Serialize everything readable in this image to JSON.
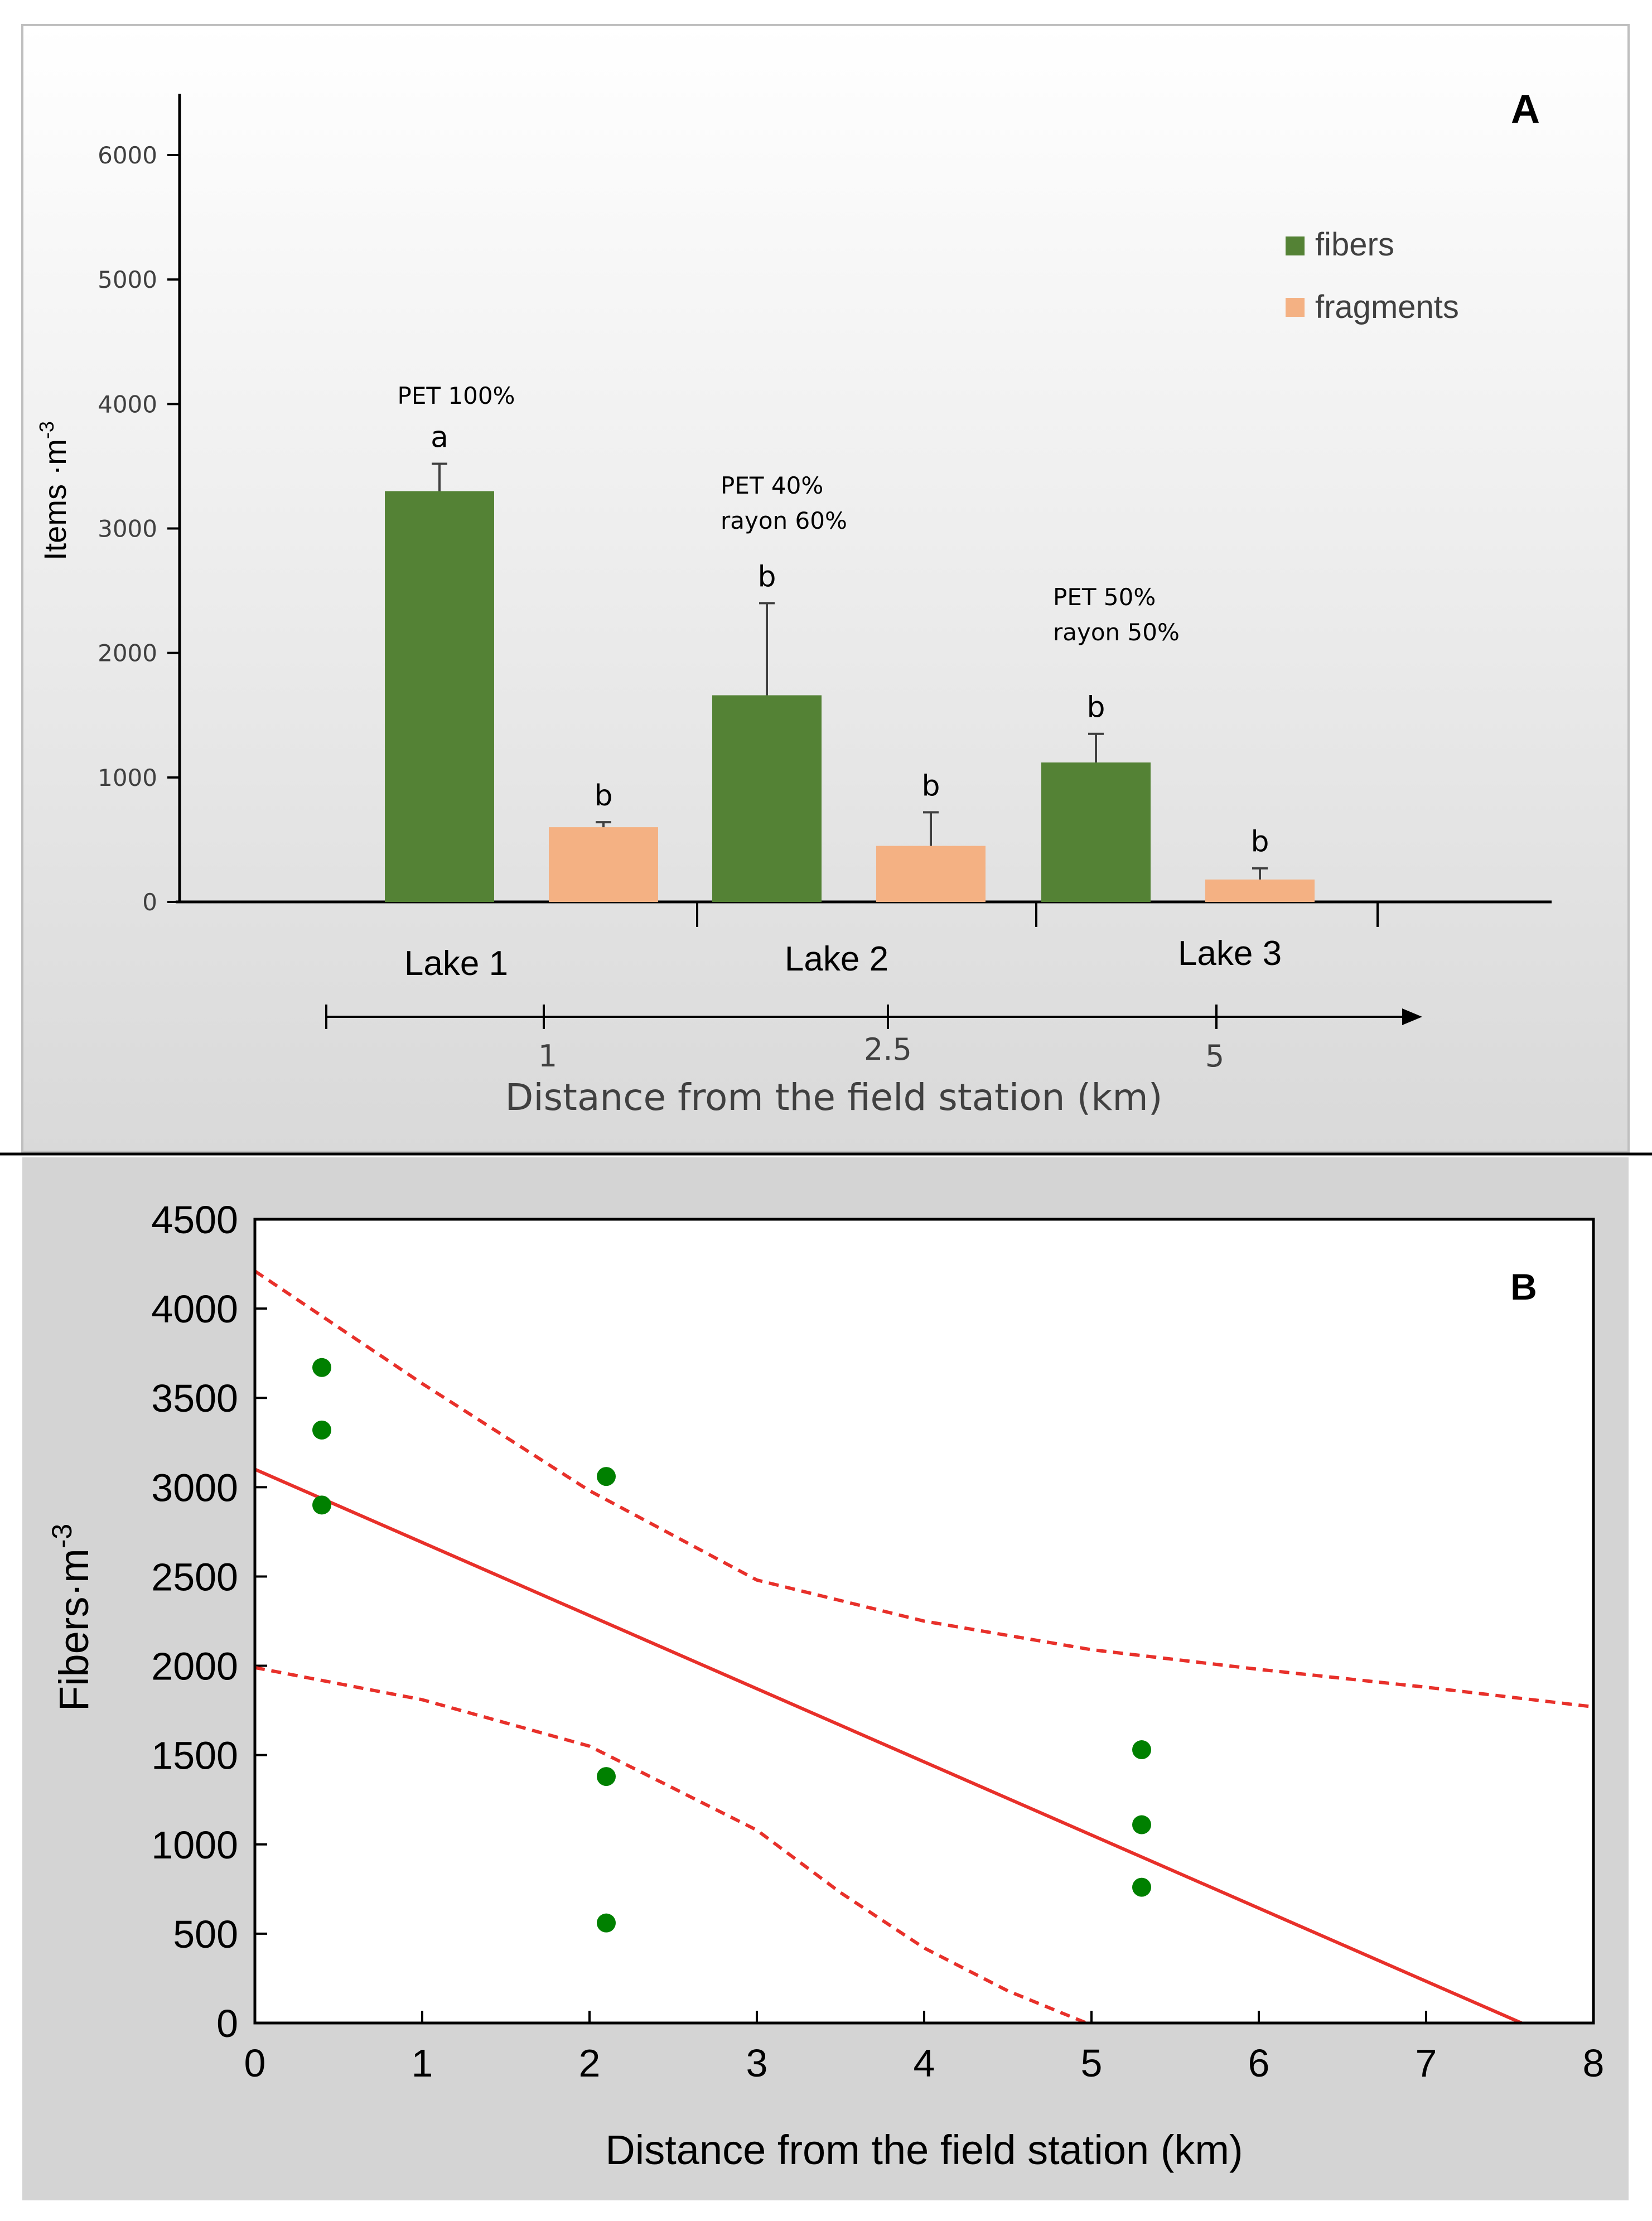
{
  "chart_data": [
    {
      "type": "bar",
      "panel_label": "A",
      "title": "",
      "ylabel": "Items ·m",
      "ylabel_superscript": "-3",
      "ylim": [
        0,
        6500
      ],
      "yticks": [
        0,
        1000,
        2000,
        3000,
        4000,
        5000,
        6000
      ],
      "categories": [
        "Lake 1",
        "Lake 2",
        "Lake 3"
      ],
      "series": [
        {
          "name": "fibers",
          "color": "#548235",
          "values": [
            3300,
            1660,
            1120
          ],
          "errors": [
            220,
            740,
            230
          ],
          "labels": [
            "a",
            "b",
            "b"
          ]
        },
        {
          "name": "fragments",
          "color": "#f4b183",
          "values": [
            600,
            450,
            180
          ],
          "errors": [
            40,
            270,
            90
          ],
          "labels": [
            "b",
            "b",
            "b"
          ]
        }
      ],
      "composition_notes": [
        {
          "lines": [
            "PET 100%"
          ]
        },
        {
          "lines": [
            "PET 40%",
            "rayon 60%"
          ]
        },
        {
          "lines": [
            "PET 50%",
            "rayon 50%"
          ]
        }
      ],
      "distance_axis": {
        "ticks": [
          "1",
          "2.5",
          "5"
        ],
        "label": "Distance from the field station (km)"
      }
    },
    {
      "type": "scatter",
      "panel_label": "B",
      "title": "",
      "xlabel": "Distance from the field station (km)",
      "ylabel": "Fibers·m",
      "ylabel_superscript": "-3",
      "xlim": [
        0,
        8
      ],
      "ylim": [
        0,
        4500
      ],
      "xticks": [
        0,
        1,
        2,
        3,
        4,
        5,
        6,
        7,
        8
      ],
      "yticks": [
        0,
        500,
        1000,
        1500,
        2000,
        2500,
        3000,
        3500,
        4000,
        4500
      ],
      "points": {
        "color": "#008000",
        "x": [
          0.4,
          0.4,
          0.4,
          2.1,
          2.1,
          2.1,
          5.3,
          5.3,
          5.3
        ],
        "y": [
          3670,
          3320,
          2900,
          3060,
          1380,
          560,
          1530,
          1110,
          760
        ]
      },
      "fit_line": {
        "color": "#e8302a",
        "x": [
          0,
          7.57
        ],
        "y": [
          3100,
          0
        ]
      },
      "confidence_upper": {
        "x": [
          0,
          1,
          2,
          3,
          4,
          5,
          6,
          7,
          8
        ],
        "y": [
          4210,
          3580,
          2980,
          2480,
          2250,
          2090,
          1980,
          1880,
          1770
        ]
      },
      "confidence_lower": {
        "x": [
          0,
          1,
          2,
          3,
          3.5,
          4,
          4.5,
          4.97
        ],
        "y": [
          1990,
          1810,
          1550,
          1080,
          730,
          420,
          180,
          0
        ]
      }
    }
  ]
}
